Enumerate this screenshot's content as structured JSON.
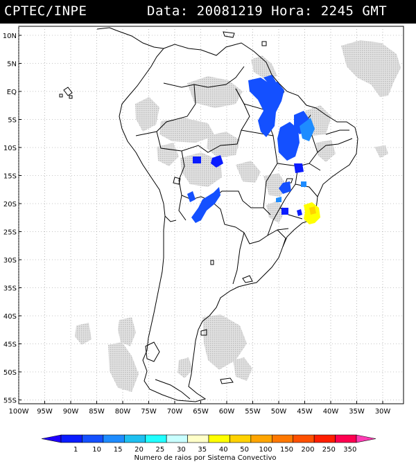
{
  "header": {
    "source": "CPTEC/INPE",
    "datetime": "Data: 20081219 Hora: 2245 GMT"
  },
  "map": {
    "lat_labels": [
      "10N",
      "5N",
      "EQ",
      "5S",
      "10S",
      "15S",
      "20S",
      "25S",
      "30S",
      "35S",
      "40S",
      "45S",
      "50S",
      "55S"
    ],
    "lon_labels": [
      "100W",
      "95W",
      "90W",
      "85W",
      "80W",
      "75W",
      "70W",
      "65W",
      "60W",
      "55W",
      "50W",
      "45W",
      "40W",
      "35W",
      "30W"
    ],
    "lon_range": [
      -100,
      -27
    ],
    "lat_range": [
      -56,
      13
    ]
  },
  "legend": {
    "values": [
      "1",
      "10",
      "15",
      "20",
      "25",
      "30",
      "35",
      "40",
      "50",
      "100",
      "150",
      "200",
      "250",
      "350"
    ],
    "colors": [
      "#0a1cff",
      "#1450ff",
      "#1e8cff",
      "#1ec0f0",
      "#20ffff",
      "#c8ffff",
      "#ffffc8",
      "#ffff00",
      "#ffd200",
      "#ffa500",
      "#ff7800",
      "#ff5000",
      "#ff1e00",
      "#ff0050"
    ],
    "start_color": "#1e00ff",
    "end_color": "#ff3cb4",
    "caption": "Numero de raios por Sistema Convectivo"
  }
}
